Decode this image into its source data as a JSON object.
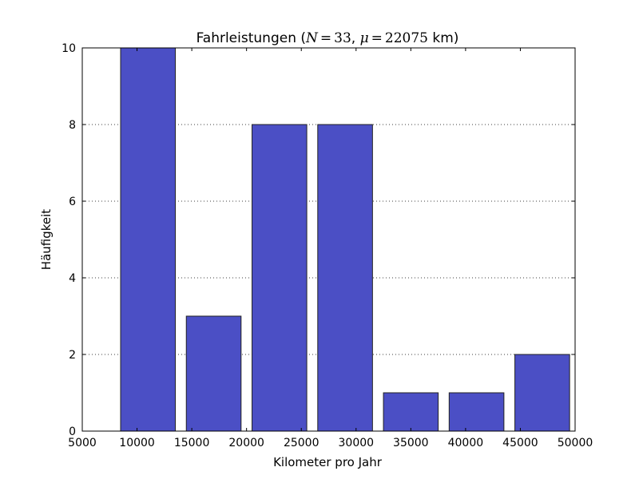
{
  "chart_data": {
    "type": "bar",
    "title": {
      "prefix": "Fahrleistungen (",
      "n_symbol": "N",
      "n_value": "33",
      "mu_symbol": "μ",
      "mu_value": "22075",
      "suffix": " km)"
    },
    "xlabel": "Kilometer pro Jahr",
    "ylabel": "Häufigkeit",
    "xlim": [
      5000,
      50000
    ],
    "ylim": [
      0,
      10
    ],
    "xticks": [
      5000,
      10000,
      15000,
      20000,
      25000,
      30000,
      35000,
      40000,
      45000,
      50000
    ],
    "yticks": [
      0,
      2,
      4,
      6,
      8,
      10
    ],
    "grid": "y-dotted",
    "bar_color": "#4b4fc5",
    "bars": [
      {
        "start": 8500,
        "end": 13500,
        "value": 10
      },
      {
        "start": 14500,
        "end": 19500,
        "value": 3
      },
      {
        "start": 20500,
        "end": 25500,
        "value": 8
      },
      {
        "start": 26500,
        "end": 31500,
        "value": 8
      },
      {
        "start": 32500,
        "end": 37500,
        "value": 1
      },
      {
        "start": 38500,
        "end": 43500,
        "value": 1
      },
      {
        "start": 44500,
        "end": 49500,
        "value": 2
      }
    ]
  }
}
